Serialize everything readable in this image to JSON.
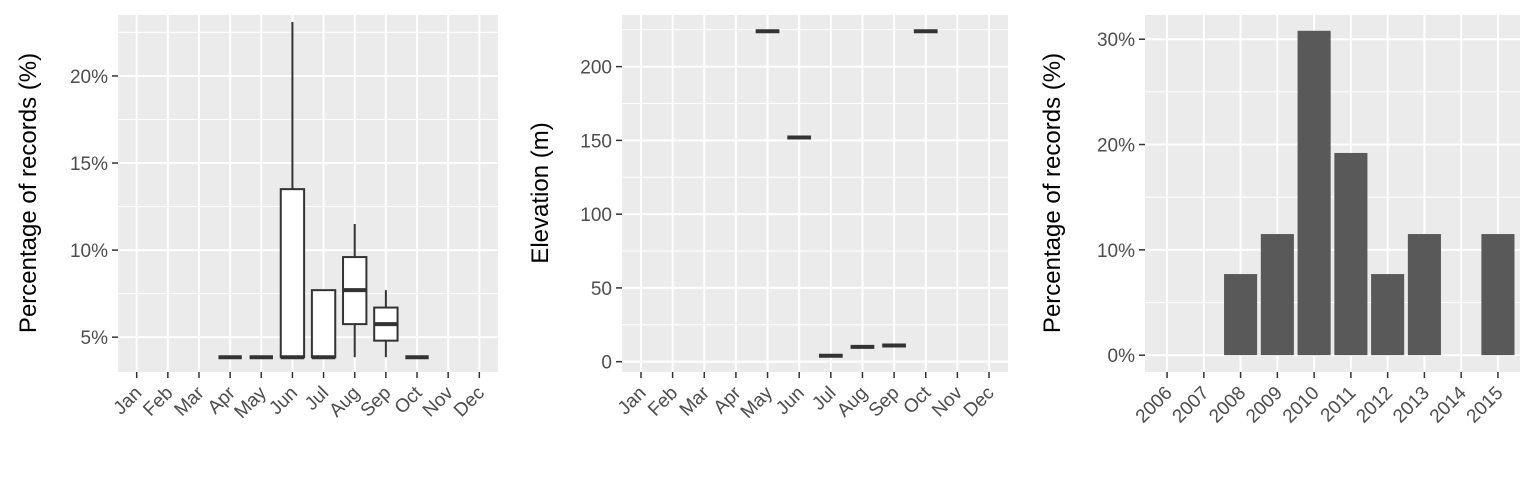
{
  "colors": {
    "panel_bg": "#ebebeb",
    "grid": "#ffffff",
    "box_line": "#333333",
    "box_fill": "#ffffff",
    "bar_fill": "#595959",
    "tick_text": "#4d4d4d"
  },
  "chart_data": [
    {
      "type": "box",
      "ylabel": "Percentage of records (%)",
      "xlabel": "",
      "categories": [
        "Jan",
        "Feb",
        "Mar",
        "Apr",
        "May",
        "Jun",
        "Jul",
        "Aug",
        "Sep",
        "Oct",
        "Nov",
        "Dec"
      ],
      "ylim": [
        3.0,
        23.5
      ],
      "y_ticks": [
        5,
        10,
        15,
        20
      ],
      "y_tick_labels": [
        "5%",
        "10%",
        "15%",
        "20%"
      ],
      "boxes": [
        {
          "category": "Apr",
          "min": 3.85,
          "q1": 3.85,
          "median": 3.85,
          "q3": 3.85,
          "max": 3.85
        },
        {
          "category": "May",
          "min": 3.85,
          "q1": 3.85,
          "median": 3.85,
          "q3": 3.85,
          "max": 3.85
        },
        {
          "category": "Jun",
          "min": 3.85,
          "q1": 3.85,
          "median": 3.85,
          "q3": 13.5,
          "max": 23.1
        },
        {
          "category": "Jul",
          "min": 3.85,
          "q1": 3.85,
          "median": 3.85,
          "q3": 7.7,
          "max": 7.7
        },
        {
          "category": "Aug",
          "min": 3.85,
          "q1": 5.75,
          "median": 7.7,
          "q3": 9.6,
          "max": 11.5
        },
        {
          "category": "Sep",
          "min": 3.85,
          "q1": 4.8,
          "median": 5.75,
          "q3": 6.7,
          "max": 7.7
        },
        {
          "category": "Oct",
          "min": 3.85,
          "q1": 3.85,
          "median": 3.85,
          "q3": 3.85,
          "max": 3.85
        }
      ]
    },
    {
      "type": "box",
      "ylabel": "Elevation (m)",
      "xlabel": "",
      "categories": [
        "Jan",
        "Feb",
        "Mar",
        "Apr",
        "May",
        "Jun",
        "Jul",
        "Aug",
        "Sep",
        "Oct",
        "Nov",
        "Dec"
      ],
      "ylim": [
        -7,
        235
      ],
      "y_ticks": [
        0,
        50,
        100,
        150,
        200
      ],
      "y_tick_labels": [
        "0",
        "50",
        "100",
        "150",
        "200"
      ],
      "boxes": [
        {
          "category": "May",
          "min": 224,
          "q1": 224,
          "median": 224,
          "q3": 224,
          "max": 224
        },
        {
          "category": "Jun",
          "min": 152,
          "q1": 152,
          "median": 152,
          "q3": 152,
          "max": 152
        },
        {
          "category": "Jul",
          "min": 4,
          "q1": 4,
          "median": 4,
          "q3": 4,
          "max": 4
        },
        {
          "category": "Aug",
          "min": 10,
          "q1": 10,
          "median": 10,
          "q3": 10,
          "max": 10
        },
        {
          "category": "Sep",
          "min": 11,
          "q1": 11,
          "median": 11,
          "q3": 11,
          "max": 11
        },
        {
          "category": "Oct",
          "min": 224,
          "q1": 224,
          "median": 224,
          "q3": 224,
          "max": 224
        }
      ]
    },
    {
      "type": "bar",
      "ylabel": "Percentage of records (%)",
      "xlabel": "",
      "categories": [
        "2006",
        "2007",
        "2008",
        "2009",
        "2010",
        "2011",
        "2012",
        "2013",
        "2014",
        "2015"
      ],
      "values": [
        0,
        0,
        7.7,
        11.5,
        30.8,
        19.2,
        7.7,
        11.5,
        0,
        11.5
      ],
      "ylim": [
        -1.6,
        32.3
      ],
      "y_ticks": [
        0,
        10,
        20,
        30
      ],
      "y_tick_labels": [
        "0%",
        "10%",
        "20%",
        "30%"
      ]
    }
  ]
}
